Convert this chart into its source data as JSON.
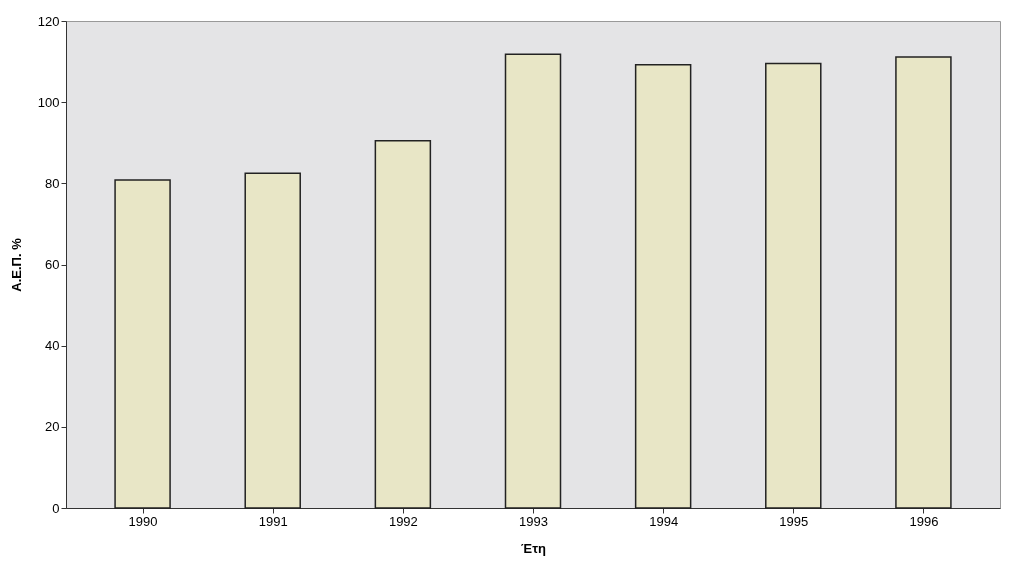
{
  "chart_data": {
    "type": "bar",
    "xlabel": "Έτη",
    "ylabel": "Α.Ε.Π. %",
    "categories": [
      "1990",
      "1991",
      "1992",
      "1993",
      "1994",
      "1995",
      "1996"
    ],
    "values": [
      80.8,
      82.5,
      90.5,
      111.8,
      109.2,
      109.5,
      111.1
    ],
    "color": "#e8e6c6",
    "ylim": [
      0,
      120
    ],
    "yticks": [
      0,
      20,
      40,
      60,
      80,
      100,
      120
    ],
    "grid": false
  }
}
